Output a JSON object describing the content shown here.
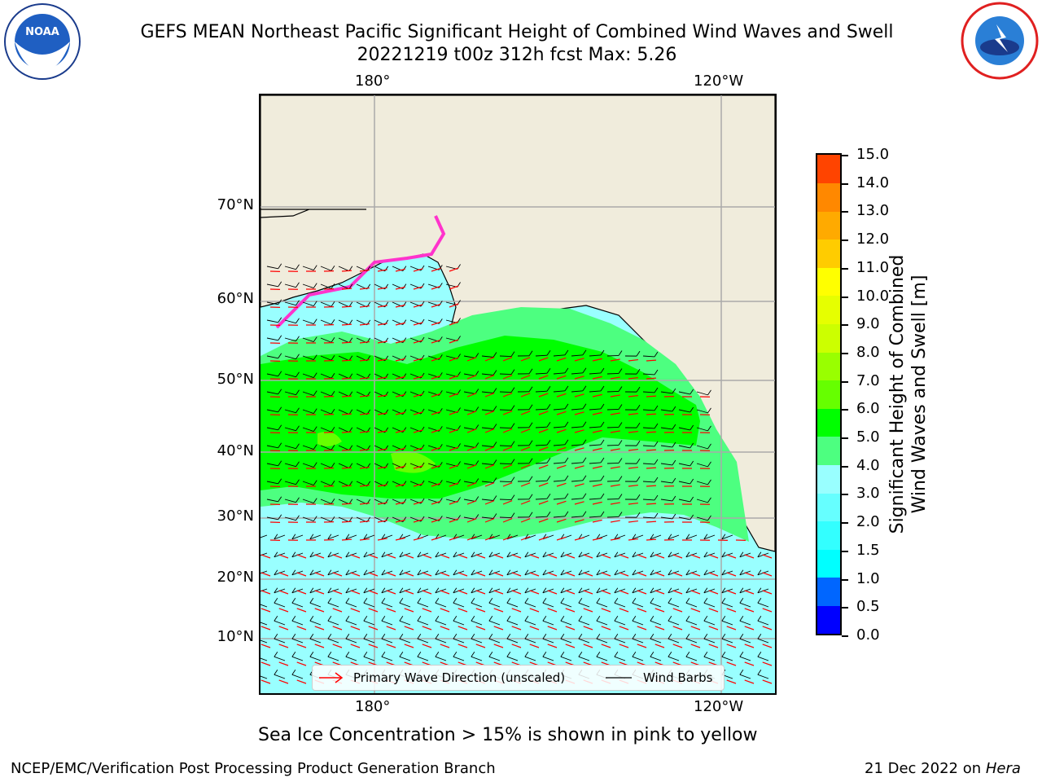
{
  "title_line1": "GEFS MEAN Northeast Pacific Significant Height of Combined Wind Waves and Swell",
  "title_line2": "20221219 t00z 312h fcst   Max: 5.26",
  "map": {
    "lon_labels_top": [
      "180°",
      "120°W"
    ],
    "lon_labels_bottom": [
      "180°",
      "120°W"
    ],
    "lat_labels": [
      "70°N",
      "60°N",
      "50°N",
      "40°N",
      "30°N",
      "20°N",
      "10°N"
    ],
    "land_color": "#f0ecdc",
    "sea_ice_colors": [
      "#ff33cc",
      "#ffcc00"
    ]
  },
  "legend": {
    "wave_direction": "Primary Wave Direction (unscaled)",
    "wind_barbs": "Wind Barbs",
    "wave_color": "#ff0000",
    "barb_color": "#000000"
  },
  "colorbar": {
    "label_line1": "Significant Height of Combined",
    "label_line2": "Wind Waves and Swell [m]",
    "ticks": [
      "15.0",
      "14.0",
      "13.0",
      "12.0",
      "11.0",
      "10.0",
      "9.0",
      "8.0",
      "7.0",
      "6.0",
      "5.0",
      "4.0",
      "3.0",
      "2.0",
      "1.5",
      "1.0",
      "0.5",
      "0.0"
    ],
    "colors": [
      "#0000ff",
      "#0066ff",
      "#00ffff",
      "#33ffff",
      "#66ffff",
      "#99ffff",
      "#4dff80",
      "#00ff00",
      "#66ff00",
      "#99ff00",
      "#ccff00",
      "#e6ff00",
      "#ffff00",
      "#ffcc00",
      "#ffaa00",
      "#ff8800",
      "#ff4400",
      "#ff0000"
    ]
  },
  "caption": "Sea Ice Concentration > 15% is shown in pink to yellow",
  "footer_left": "NCEP/EMC/Verification Post Processing Product Generation Branch",
  "footer_right_date": "21 Dec 2022 on ",
  "footer_right_host": "Hera"
}
